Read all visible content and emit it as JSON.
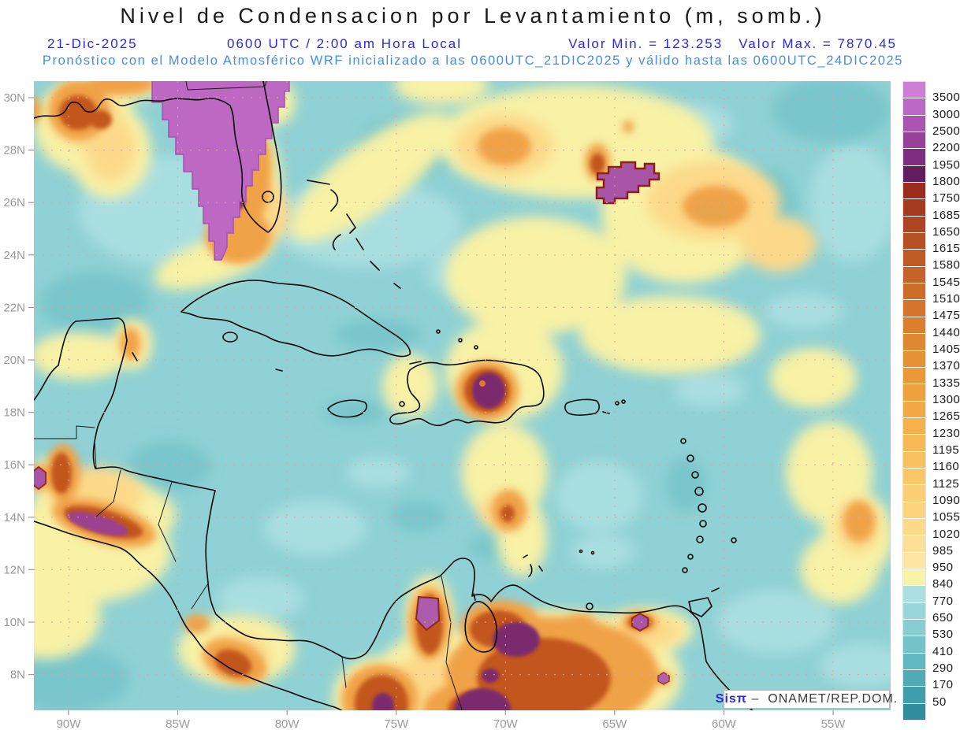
{
  "header": {
    "title": "Nivel de Condensacion por Levantamiento (m, somb.)",
    "date": "21-Dic-2025",
    "valid_time": "0600 UTC / 2:00 am Hora Local",
    "value_min": "Valor Min. = 123.253",
    "value_max": "Valor Max. = 7870.45",
    "model_line": "Pronóstico con el Modelo Atmosférico WRF inicializado a las 0600UTC_21DIC2025 y válido hasta las  0600UTC_24DIC2025"
  },
  "axes": {
    "lat_labels": [
      "30N",
      "28N",
      "26N",
      "24N",
      "22N",
      "20N",
      "18N",
      "16N",
      "14N",
      "12N",
      "10N",
      "8N"
    ],
    "lon_labels": [
      "90W",
      "85W",
      "80W",
      "75W",
      "70W",
      "65W",
      "60W",
      "55W"
    ]
  },
  "colorbar": {
    "levels": [
      "3500",
      "3000",
      "2500",
      "2200",
      "1950",
      "1800",
      "1750",
      "1685",
      "1650",
      "1615",
      "1580",
      "1545",
      "1510",
      "1475",
      "1440",
      "1405",
      "1370",
      "1335",
      "1300",
      "1265",
      "1230",
      "1195",
      "1160",
      "1125",
      "1090",
      "1055",
      "1020",
      "985",
      "950",
      "840",
      "770",
      "650",
      "530",
      "410",
      "290",
      "170",
      "50"
    ],
    "colors": [
      "#cd7fd6",
      "#bc68c6",
      "#aa53b0",
      "#984199",
      "#7e2d80",
      "#621d5e",
      "#992c1c",
      "#a43a1f",
      "#ad4522",
      "#b55024",
      "#bd5a26",
      "#c56428",
      "#cc6d2a",
      "#d3762c",
      "#d97f2e",
      "#df8831",
      "#e59134",
      "#ea9938",
      "#efa13d",
      "#f2a944",
      "#f5b14c",
      "#f7b955",
      "#f9c05e",
      "#fac768",
      "#fbce73",
      "#fcd47e",
      "#fdda8a",
      "#fde096",
      "#fee5a3",
      "#f9f2a9",
      "#abdfe2",
      "#99d6da",
      "#87cdd2",
      "#75c3ca",
      "#63b8c1",
      "#51abb7",
      "#409dac",
      "#2f8d9e"
    ]
  },
  "watermark": {
    "brand": "Sisπ",
    "text": " –  ONAMET/REP.DOM."
  },
  "colors": {
    "header_blue": "#2a2ad4",
    "subheader_blue": "#3f8fe8",
    "axis_gray": "#9a9a9a",
    "sea_base": "#8fd1d4",
    "grid_dots": "#d9a8a0"
  }
}
